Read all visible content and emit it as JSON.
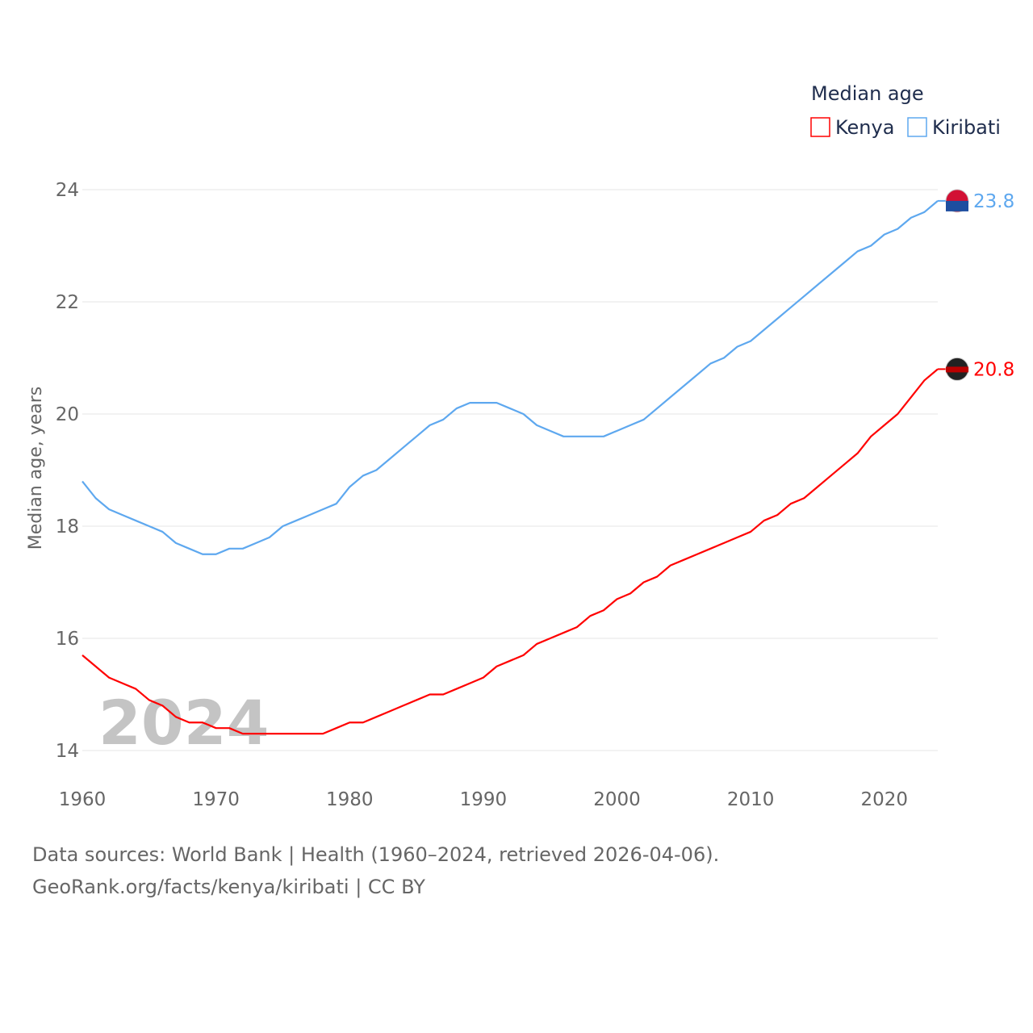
{
  "chart_data": {
    "type": "line",
    "title": "",
    "legend_title": "Median age",
    "legend_placement": "top-right",
    "ylabel": "Median age, years",
    "xlabel": "",
    "xlim": [
      1960,
      2024
    ],
    "ylim": [
      14,
      24
    ],
    "xticks": [
      1960,
      1970,
      1980,
      1990,
      2000,
      2010,
      2020
    ],
    "yticks": [
      14,
      16,
      18,
      20,
      22,
      24
    ],
    "grid": true,
    "watermark": "2024",
    "x_start": 1960,
    "series": [
      {
        "name": "Kenya",
        "color": "#ff0000",
        "end_label": "20.8",
        "values": [
          15.7,
          15.5,
          15.3,
          15.2,
          15.1,
          14.9,
          14.8,
          14.6,
          14.5,
          14.5,
          14.4,
          14.4,
          14.3,
          14.3,
          14.3,
          14.3,
          14.3,
          14.3,
          14.3,
          14.4,
          14.5,
          14.5,
          14.6,
          14.7,
          14.8,
          14.9,
          15.0,
          15.0,
          15.1,
          15.2,
          15.3,
          15.5,
          15.6,
          15.7,
          15.9,
          16.0,
          16.1,
          16.2,
          16.4,
          16.5,
          16.7,
          16.8,
          17.0,
          17.1,
          17.3,
          17.4,
          17.5,
          17.6,
          17.7,
          17.8,
          17.9,
          18.1,
          18.2,
          18.4,
          18.5,
          18.7,
          18.9,
          19.1,
          19.3,
          19.6,
          19.8,
          20.0,
          20.3,
          20.6,
          20.8
        ]
      },
      {
        "name": "Kiribati",
        "color": "#5ea8ef",
        "end_label": "23.8",
        "values": [
          18.8,
          18.5,
          18.3,
          18.2,
          18.1,
          18.0,
          17.9,
          17.7,
          17.6,
          17.5,
          17.5,
          17.6,
          17.6,
          17.7,
          17.8,
          18.0,
          18.1,
          18.2,
          18.3,
          18.4,
          18.7,
          18.9,
          19.0,
          19.2,
          19.4,
          19.6,
          19.8,
          19.9,
          20.1,
          20.2,
          20.2,
          20.2,
          20.1,
          20.0,
          19.8,
          19.7,
          19.6,
          19.6,
          19.6,
          19.6,
          19.7,
          19.8,
          19.9,
          20.1,
          20.3,
          20.5,
          20.7,
          20.9,
          21.0,
          21.2,
          21.3,
          21.5,
          21.7,
          21.9,
          22.1,
          22.3,
          22.5,
          22.7,
          22.9,
          23.0,
          23.2,
          23.3,
          23.5,
          23.6,
          23.8
        ]
      }
    ]
  },
  "footer": {
    "line1": "Data sources: World Bank | Health (1960–2024, retrieved 2026-04-06).",
    "line2": "GeoRank.org/facts/kenya/kiribati | CC BY"
  }
}
